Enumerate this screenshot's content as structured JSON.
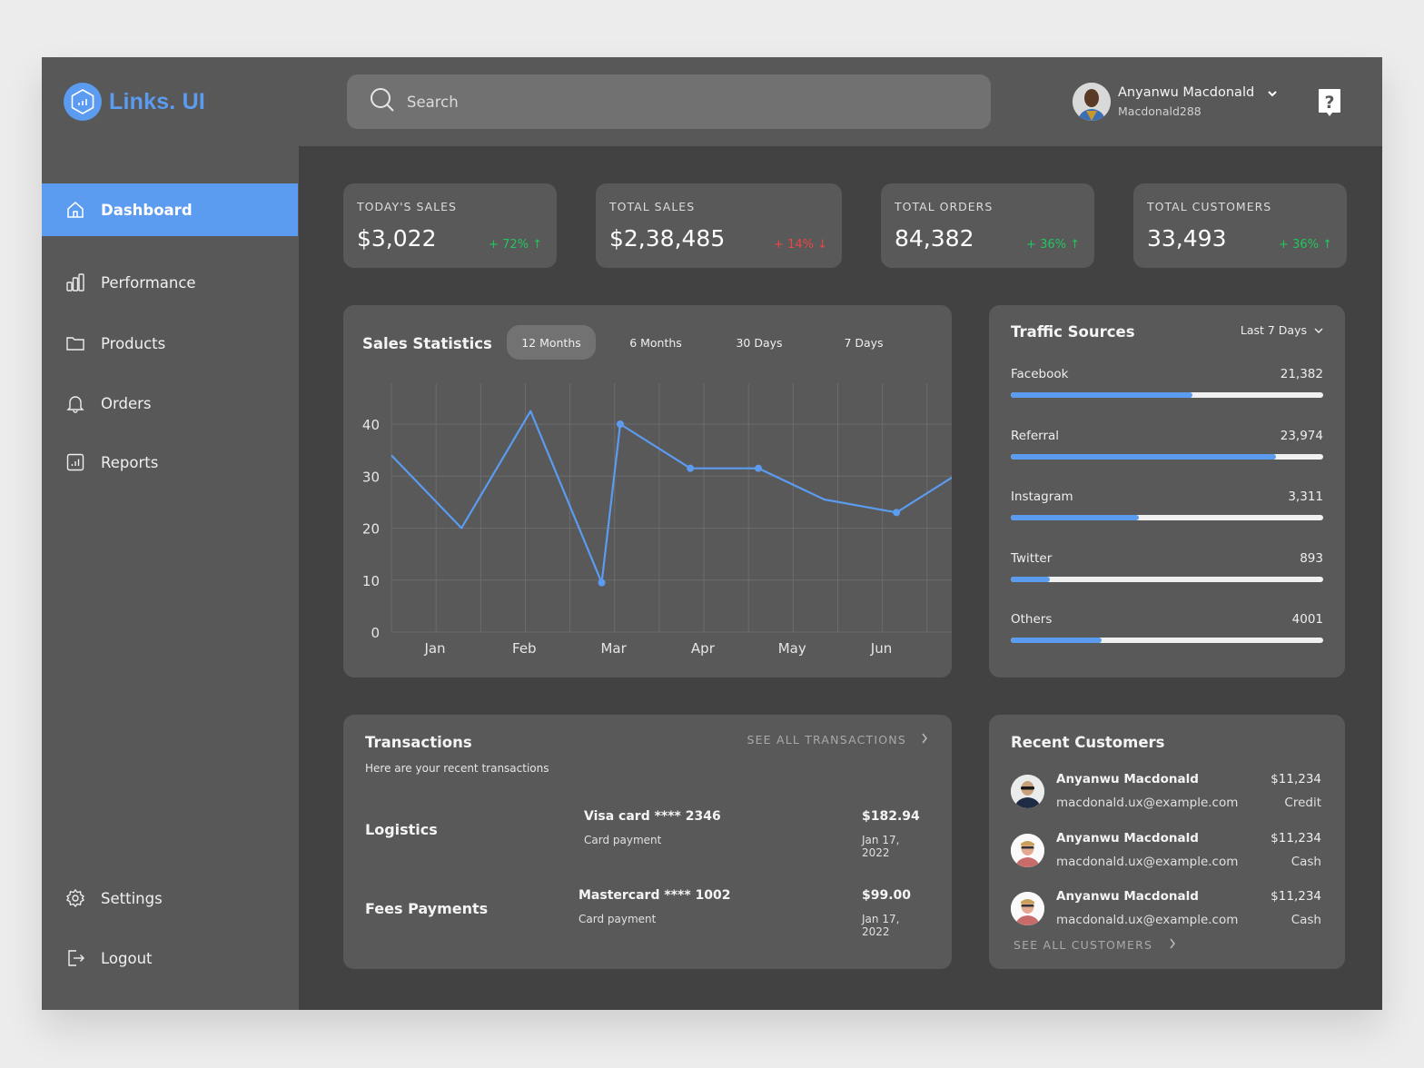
{
  "brand": {
    "name": "Links. UI",
    "color": "#5b9bf0"
  },
  "sidebar": {
    "items": [
      {
        "label": "Dashboard",
        "icon": "home-icon",
        "active": true
      },
      {
        "label": "Performance",
        "icon": "bar-chart-icon"
      },
      {
        "label": "Products",
        "icon": "folder-icon"
      },
      {
        "label": "Orders",
        "icon": "bell-icon"
      },
      {
        "label": "Reports",
        "icon": "report-icon"
      }
    ],
    "bottom_items": [
      {
        "label": "Settings",
        "icon": "gear-icon"
      },
      {
        "label": "Logout",
        "icon": "logout-icon"
      }
    ]
  },
  "header": {
    "search": {
      "placeholder": "Search",
      "value": ""
    },
    "user": {
      "name": "Anyanwu Macdonald",
      "handle": "Macdonald288"
    },
    "help_icon": "help-icon"
  },
  "stats": [
    {
      "label": "TODAY'S SALES",
      "value": "$3,022",
      "delta": "+ 72% ↑",
      "trend": "up"
    },
    {
      "label": "TOTAL SALES",
      "value": "$2,38,485",
      "delta": "+ 14% ↓",
      "trend": "down"
    },
    {
      "label": "TOTAL ORDERS",
      "value": "84,382",
      "delta": "+ 36% ↑",
      "trend": "up"
    },
    {
      "label": "TOTAL CUSTOMERS",
      "value": "33,493",
      "delta": "+ 36% ↑",
      "trend": "up"
    }
  ],
  "sales_statistics": {
    "title": "Sales Statistics",
    "tabs": [
      {
        "label": "12 Months",
        "active": true
      },
      {
        "label": "6 Months"
      },
      {
        "label": "30 Days"
      },
      {
        "label": "7 Days"
      }
    ]
  },
  "chart_data": {
    "type": "line",
    "title": "Sales Statistics",
    "xlabel": "",
    "ylabel": "",
    "categories": [
      "Jan",
      "Feb",
      "Mar",
      "Apr",
      "May",
      "Jun"
    ],
    "yticks": [
      0,
      10,
      20,
      30,
      40
    ],
    "ylim": [
      0,
      48
    ],
    "grid": true,
    "series": [
      {
        "name": "Sales",
        "color": "#5b9bf0",
        "points": [
          {
            "x": 0.0,
            "y": 34
          },
          {
            "x": 0.68,
            "y": 20
          },
          {
            "x": 1.35,
            "y": 42.5
          },
          {
            "x": 2.04,
            "y": 9.5
          },
          {
            "x": 2.22,
            "y": 40
          },
          {
            "x": 2.9,
            "y": 31.5
          },
          {
            "x": 3.56,
            "y": 31.5
          },
          {
            "x": 4.2,
            "y": 25.5
          },
          {
            "x": 4.9,
            "y": 23
          },
          {
            "x": 5.58,
            "y": 31.5
          },
          {
            "x": 5.85,
            "y": 31.2
          }
        ],
        "markers_at": [
          3,
          4,
          5,
          6,
          8,
          9
        ]
      }
    ]
  },
  "traffic_sources": {
    "title": "Traffic Sources",
    "range": "Last 7 Days",
    "items": [
      {
        "name": "Facebook",
        "value": "21,382",
        "pct": 58
      },
      {
        "name": "Referral",
        "value": "23,974",
        "pct": 85
      },
      {
        "name": "Instagram",
        "value": "3,311",
        "pct": 41
      },
      {
        "name": "Twitter",
        "value": "893",
        "pct": 12.5
      },
      {
        "name": "Others",
        "value": "4001",
        "pct": 29
      }
    ]
  },
  "transactions": {
    "title": "Transactions",
    "subtitle": "Here are your recent transactions",
    "see_all": "SEE ALL TRANSACTIONS",
    "rows": [
      {
        "category": "Logistics",
        "card": "Visa card  **** 2346",
        "method": "Card payment",
        "amount": "$182.94",
        "date": "Jan 17, 2022"
      },
      {
        "category": "Fees Payments",
        "card": "Mastercard  **** 1002",
        "method": "Card payment",
        "amount": "$99.00",
        "date": "Jan 17, 2022"
      }
    ]
  },
  "recent_customers": {
    "title": "Recent Customers",
    "see_all": "SEE ALL CUSTOMERS",
    "rows": [
      {
        "name": "Anyanwu Macdonald",
        "email": "macdonald.ux@example.com",
        "amount": "$11,234",
        "type": "Credit"
      },
      {
        "name": "Anyanwu Macdonald",
        "email": "macdonald.ux@example.com",
        "amount": "$11,234",
        "type": "Cash"
      },
      {
        "name": "Anyanwu Macdonald",
        "email": "macdonald.ux@example.com",
        "amount": "$11,234",
        "type": "Cash"
      }
    ]
  }
}
